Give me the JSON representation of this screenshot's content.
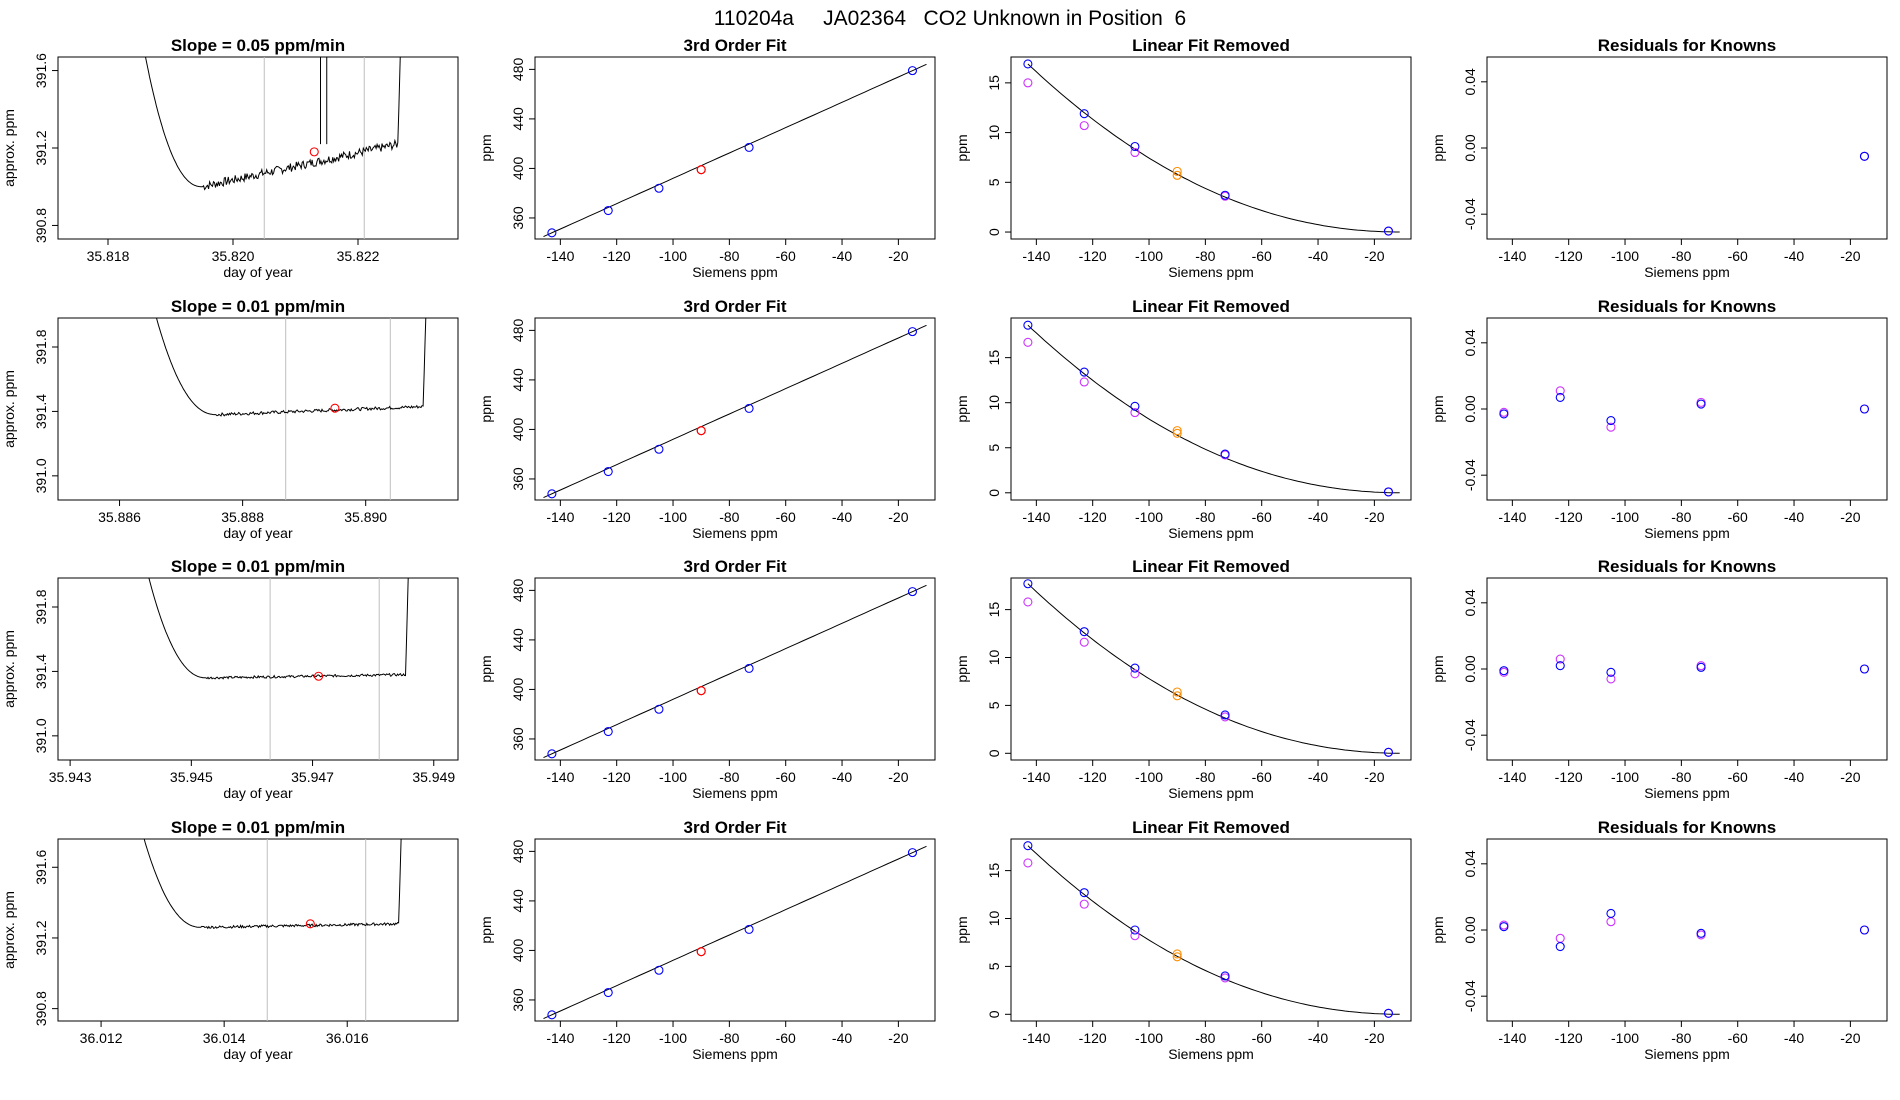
{
  "page_title": "110204a     JA02364   CO2 Unknown in Position  6",
  "chart_data": [
    {
      "panel": "r1-trace",
      "type": "line",
      "title": "Slope =  0.05  ppm/min",
      "xlabel": "day of year",
      "ylabel": "approx. ppm",
      "xlim": [
        35.8172,
        35.8236
      ],
      "xticks": [
        35.818,
        35.82,
        35.822
      ],
      "xtick_labels": [
        "35.818",
        "35.820",
        "35.822"
      ],
      "ylim": [
        390.73,
        391.67
      ],
      "yticks": [
        390.8,
        391.2,
        391.6
      ],
      "ytick_labels": [
        "390.8",
        "391.2",
        "391.6"
      ],
      "vlines": [
        35.8205,
        35.8221
      ],
      "spikes": [
        35.8214,
        35.8215
      ],
      "marker": {
        "x": 35.8213,
        "y": 391.18
      },
      "trace": {
        "x_start": 35.8186,
        "x_end": 35.8227,
        "top": 391.67,
        "min": 391.0,
        "end": 391.22
      }
    },
    {
      "panel": "r2-trace",
      "type": "line",
      "title": "Slope =  0.01  ppm/min",
      "xlabel": "day of year",
      "ylabel": "approx. ppm",
      "xlim": [
        35.885,
        35.8915
      ],
      "xticks": [
        35.886,
        35.888,
        35.89
      ],
      "xtick_labels": [
        "35.886",
        "35.888",
        "35.890"
      ],
      "ylim": [
        390.85,
        391.98
      ],
      "yticks": [
        391.0,
        391.4,
        391.8
      ],
      "ytick_labels": [
        "391.0",
        "391.4",
        "391.8"
      ],
      "vlines": [
        35.8887,
        35.8904
      ],
      "spikes": [],
      "marker": {
        "x": 35.8895,
        "y": 391.42
      },
      "trace": {
        "x_start": 35.8866,
        "x_end": 35.891,
        "top": 391.98,
        "min": 391.38,
        "end": 391.43
      }
    },
    {
      "panel": "r3-trace",
      "type": "line",
      "title": "Slope =  0.01  ppm/min",
      "xlabel": "day of year",
      "ylabel": "approx. ppm",
      "xlim": [
        35.9428,
        35.9494
      ],
      "xticks": [
        35.943,
        35.945,
        35.947,
        35.949
      ],
      "xtick_labels": [
        "35.943",
        "35.945",
        "35.947",
        "35.949"
      ],
      "ylim": [
        390.85,
        391.98
      ],
      "yticks": [
        391.0,
        391.4,
        391.8
      ],
      "ytick_labels": [
        "391.0",
        "391.4",
        "391.8"
      ],
      "vlines": [
        35.9463,
        35.9481
      ],
      "spikes": [],
      "marker": {
        "x": 35.9471,
        "y": 391.37
      },
      "trace": {
        "x_start": 35.9443,
        "x_end": 35.9486,
        "top": 391.98,
        "min": 391.36,
        "end": 391.38
      }
    },
    {
      "panel": "r4-trace",
      "type": "line",
      "title": "Slope =  0.01  ppm/min",
      "xlabel": "day of year",
      "ylabel": "approx. ppm",
      "xlim": [
        36.0113,
        36.0178
      ],
      "xticks": [
        36.012,
        36.014,
        36.016
      ],
      "xtick_labels": [
        "36.012",
        "36.014",
        "36.016"
      ],
      "ylim": [
        390.73,
        391.76
      ],
      "yticks": [
        390.8,
        391.2,
        391.6
      ],
      "ytick_labels": [
        "390.8",
        "391.2",
        "391.6"
      ],
      "vlines": [
        36.0147,
        36.0163
      ],
      "spikes": [],
      "marker": {
        "x": 36.0154,
        "y": 391.28
      },
      "trace": {
        "x_start": 36.0127,
        "x_end": 36.0169,
        "top": 391.76,
        "min": 391.26,
        "end": 391.28
      }
    },
    {
      "panel": "r1-fit",
      "type": "scatter",
      "title": "3rd Order Fit",
      "xlabel": "Siemens ppm",
      "ylabel": "ppm",
      "xlim": [
        -149,
        -7
      ],
      "xticks": [
        -140,
        -120,
        -100,
        -80,
        -60,
        -40,
        -20
      ],
      "ylim": [
        343,
        490
      ],
      "yticks": [
        360,
        400,
        440,
        480
      ],
      "knowns": {
        "x": [
          -143,
          -123,
          -105,
          -73,
          -15
        ],
        "y": [
          348,
          366,
          384,
          417,
          479
        ]
      },
      "unknown": {
        "x": [
          -90,
          -90
        ],
        "y": [
          399,
          399
        ]
      }
    },
    {
      "panel": "r2-fit",
      "type": "scatter",
      "title": "3rd Order Fit",
      "xlabel": "Siemens ppm",
      "ylabel": "ppm",
      "xlim": [
        -149,
        -7
      ],
      "xticks": [
        -140,
        -120,
        -100,
        -80,
        -60,
        -40,
        -20
      ],
      "ylim": [
        343,
        490
      ],
      "yticks": [
        360,
        400,
        440,
        480
      ],
      "knowns": {
        "x": [
          -143,
          -123,
          -105,
          -73,
          -15
        ],
        "y": [
          348,
          366,
          384,
          417,
          479
        ]
      },
      "unknown": {
        "x": [
          -90,
          -90
        ],
        "y": [
          399,
          399
        ]
      }
    },
    {
      "panel": "r3-fit",
      "type": "scatter",
      "title": "3rd Order Fit",
      "xlabel": "Siemens ppm",
      "ylabel": "ppm",
      "xlim": [
        -149,
        -7
      ],
      "xticks": [
        -140,
        -120,
        -100,
        -80,
        -60,
        -40,
        -20
      ],
      "ylim": [
        343,
        490
      ],
      "yticks": [
        360,
        400,
        440,
        480
      ],
      "knowns": {
        "x": [
          -143,
          -123,
          -105,
          -73,
          -15
        ],
        "y": [
          348,
          366,
          384,
          417,
          479
        ]
      },
      "unknown": {
        "x": [
          -90,
          -90
        ],
        "y": [
          399,
          399
        ]
      }
    },
    {
      "panel": "r4-fit",
      "type": "scatter",
      "title": "3rd Order Fit",
      "xlabel": "Siemens ppm",
      "ylabel": "ppm",
      "xlim": [
        -149,
        -7
      ],
      "xticks": [
        -140,
        -120,
        -100,
        -80,
        -60,
        -40,
        -20
      ],
      "ylim": [
        343,
        490
      ],
      "yticks": [
        360,
        400,
        440,
        480
      ],
      "knowns": {
        "x": [
          -143,
          -123,
          -105,
          -73,
          -15
        ],
        "y": [
          348,
          366,
          384,
          417,
          479
        ]
      },
      "unknown": {
        "x": [
          -90,
          -90
        ],
        "y": [
          399,
          399
        ]
      }
    },
    {
      "panel": "r1-linear",
      "type": "scatter",
      "title": "Linear Fit Removed",
      "xlabel": "Siemens ppm",
      "ylabel": "ppm",
      "xlim": [
        -149,
        -7
      ],
      "xticks": [
        -140,
        -120,
        -100,
        -80,
        -60,
        -40,
        -20
      ],
      "ylim": [
        -0.7,
        17.6
      ],
      "yticks": [
        0,
        5,
        10,
        15
      ],
      "curve": {
        "x_end": -10,
        "a0": 16.9
      },
      "blue": {
        "x": [
          -143,
          -123,
          -105,
          -73,
          -15
        ],
        "y": [
          16.9,
          11.9,
          8.6,
          3.7,
          0.1
        ]
      },
      "magenta": {
        "x": [
          -143,
          -123,
          -105,
          -73,
          -15
        ],
        "y": [
          15.0,
          10.7,
          8.0,
          3.6,
          0.1
        ]
      },
      "orange": {
        "x": [
          -90,
          -90
        ],
        "y": [
          6.1,
          5.7
        ]
      }
    },
    {
      "panel": "r2-linear",
      "type": "scatter",
      "title": "Linear Fit Removed",
      "xlabel": "Siemens ppm",
      "ylabel": "ppm",
      "xlim": [
        -149,
        -7
      ],
      "xticks": [
        -140,
        -120,
        -100,
        -80,
        -60,
        -40,
        -20
      ],
      "ylim": [
        -0.8,
        19.4
      ],
      "yticks": [
        0,
        5,
        10,
        15
      ],
      "curve": {
        "x_end": -10,
        "a0": 18.6
      },
      "blue": {
        "x": [
          -143,
          -123,
          -105,
          -73,
          -15
        ],
        "y": [
          18.6,
          13.4,
          9.6,
          4.3,
          0.1
        ]
      },
      "magenta": {
        "x": [
          -143,
          -123,
          -105,
          -73,
          -15
        ],
        "y": [
          16.7,
          12.3,
          8.9,
          4.2,
          0.1
        ]
      },
      "orange": {
        "x": [
          -90,
          -90
        ],
        "y": [
          6.9,
          6.6
        ]
      }
    },
    {
      "panel": "r3-linear",
      "type": "scatter",
      "title": "Linear Fit Removed",
      "xlabel": "Siemens ppm",
      "ylabel": "ppm",
      "xlim": [
        -149,
        -7
      ],
      "xticks": [
        -140,
        -120,
        -100,
        -80,
        -60,
        -40,
        -20
      ],
      "ylim": [
        -0.7,
        18.3
      ],
      "yticks": [
        0,
        5,
        10,
        15
      ],
      "curve": {
        "x_end": -10,
        "a0": 17.7
      },
      "blue": {
        "x": [
          -143,
          -123,
          -105,
          -73,
          -15
        ],
        "y": [
          17.7,
          12.7,
          8.9,
          4.0,
          0.1
        ]
      },
      "magenta": {
        "x": [
          -143,
          -123,
          -105,
          -73,
          -15
        ],
        "y": [
          15.8,
          11.6,
          8.3,
          3.8,
          0.1
        ]
      },
      "orange": {
        "x": [
          -90,
          -90
        ],
        "y": [
          6.4,
          6.0
        ]
      }
    },
    {
      "panel": "r4-linear",
      "type": "scatter",
      "title": "Linear Fit Removed",
      "xlabel": "Siemens ppm",
      "ylabel": "ppm",
      "xlim": [
        -149,
        -7
      ],
      "xticks": [
        -140,
        -120,
        -100,
        -80,
        -60,
        -40,
        -20
      ],
      "ylim": [
        -0.7,
        18.3
      ],
      "yticks": [
        0,
        5,
        10,
        15
      ],
      "curve": {
        "x_end": -10,
        "a0": 17.6
      },
      "blue": {
        "x": [
          -143,
          -123,
          -105,
          -73,
          -15
        ],
        "y": [
          17.6,
          12.7,
          8.8,
          4.0,
          0.1
        ]
      },
      "magenta": {
        "x": [
          -143,
          -123,
          -105,
          -73,
          -15
        ],
        "y": [
          15.8,
          11.5,
          8.2,
          3.8,
          0.1
        ]
      },
      "orange": {
        "x": [
          -90,
          -90
        ],
        "y": [
          6.3,
          6.0
        ]
      }
    },
    {
      "panel": "r1-resid",
      "type": "scatter",
      "title": "Residuals for Knowns",
      "xlabel": "Siemens ppm",
      "ylabel": "ppm",
      "xlim": [
        -149,
        -7
      ],
      "xticks": [
        -140,
        -120,
        -100,
        -80,
        -60,
        -40,
        -20
      ],
      "ylim": [
        -0.055,
        0.055
      ],
      "yticks": [
        -0.04,
        0.0,
        0.04
      ],
      "ytick_labels": [
        "-0.04",
        "0.00",
        "0.04"
      ],
      "blue": {
        "x": [
          -15
        ],
        "y": [
          -0.005
        ]
      },
      "magenta": {
        "x": [
          -15
        ],
        "y": [
          -0.005
        ]
      }
    },
    {
      "panel": "r2-resid",
      "type": "scatter",
      "title": "Residuals for Knowns",
      "xlabel": "Siemens ppm",
      "ylabel": "ppm",
      "xlim": [
        -149,
        -7
      ],
      "xticks": [
        -140,
        -120,
        -100,
        -80,
        -60,
        -40,
        -20
      ],
      "ylim": [
        -0.055,
        0.055
      ],
      "yticks": [
        -0.04,
        0.0,
        0.04
      ],
      "ytick_labels": [
        "-0.04",
        "0.00",
        "0.04"
      ],
      "blue": {
        "x": [
          -143,
          -123,
          -105,
          -73,
          -15
        ],
        "y": [
          -0.003,
          0.007,
          -0.007,
          0.003,
          0.0
        ]
      },
      "magenta": {
        "x": [
          -143,
          -123,
          -105,
          -73,
          -15
        ],
        "y": [
          -0.002,
          0.011,
          -0.011,
          0.004,
          0.0
        ]
      }
    },
    {
      "panel": "r3-resid",
      "type": "scatter",
      "title": "Residuals for Knowns",
      "xlabel": "Siemens ppm",
      "ylabel": "ppm",
      "xlim": [
        -149,
        -7
      ],
      "xticks": [
        -140,
        -120,
        -100,
        -80,
        -60,
        -40,
        -20
      ],
      "ylim": [
        -0.055,
        0.055
      ],
      "yticks": [
        -0.04,
        0.0,
        0.04
      ],
      "ytick_labels": [
        "-0.04",
        "0.00",
        "0.04"
      ],
      "blue": {
        "x": [
          -143,
          -123,
          -105,
          -73,
          -15
        ],
        "y": [
          -0.001,
          0.002,
          -0.002,
          0.001,
          0.0
        ]
      },
      "magenta": {
        "x": [
          -143,
          -123,
          -105,
          -73,
          -15
        ],
        "y": [
          -0.002,
          0.006,
          -0.006,
          0.002,
          0.0
        ]
      }
    },
    {
      "panel": "r4-resid",
      "type": "scatter",
      "title": "Residuals for Knowns",
      "xlabel": "Siemens ppm",
      "ylabel": "ppm",
      "xlim": [
        -149,
        -7
      ],
      "xticks": [
        -140,
        -120,
        -100,
        -80,
        -60,
        -40,
        -20
      ],
      "ylim": [
        -0.055,
        0.055
      ],
      "yticks": [
        -0.04,
        0.0,
        0.04
      ],
      "ytick_labels": [
        "-0.04",
        "0.00",
        "0.04"
      ],
      "blue": {
        "x": [
          -143,
          -123,
          -105,
          -73,
          -15
        ],
        "y": [
          0.002,
          -0.01,
          0.01,
          -0.002,
          0.0
        ]
      },
      "magenta": {
        "x": [
          -143,
          -123,
          -105,
          -73,
          -15
        ],
        "y": [
          0.003,
          -0.005,
          0.005,
          -0.003,
          0.0
        ]
      }
    }
  ],
  "colors": {
    "axis": "#000000",
    "trace": "#000000",
    "vline": "#bfbfbf",
    "fit_line": "#000000",
    "known_blue": "#0000ff",
    "known_magenta": "#cc33ff",
    "unknown_red": "#ff0000",
    "unknown_orange": "#ff8c00"
  }
}
